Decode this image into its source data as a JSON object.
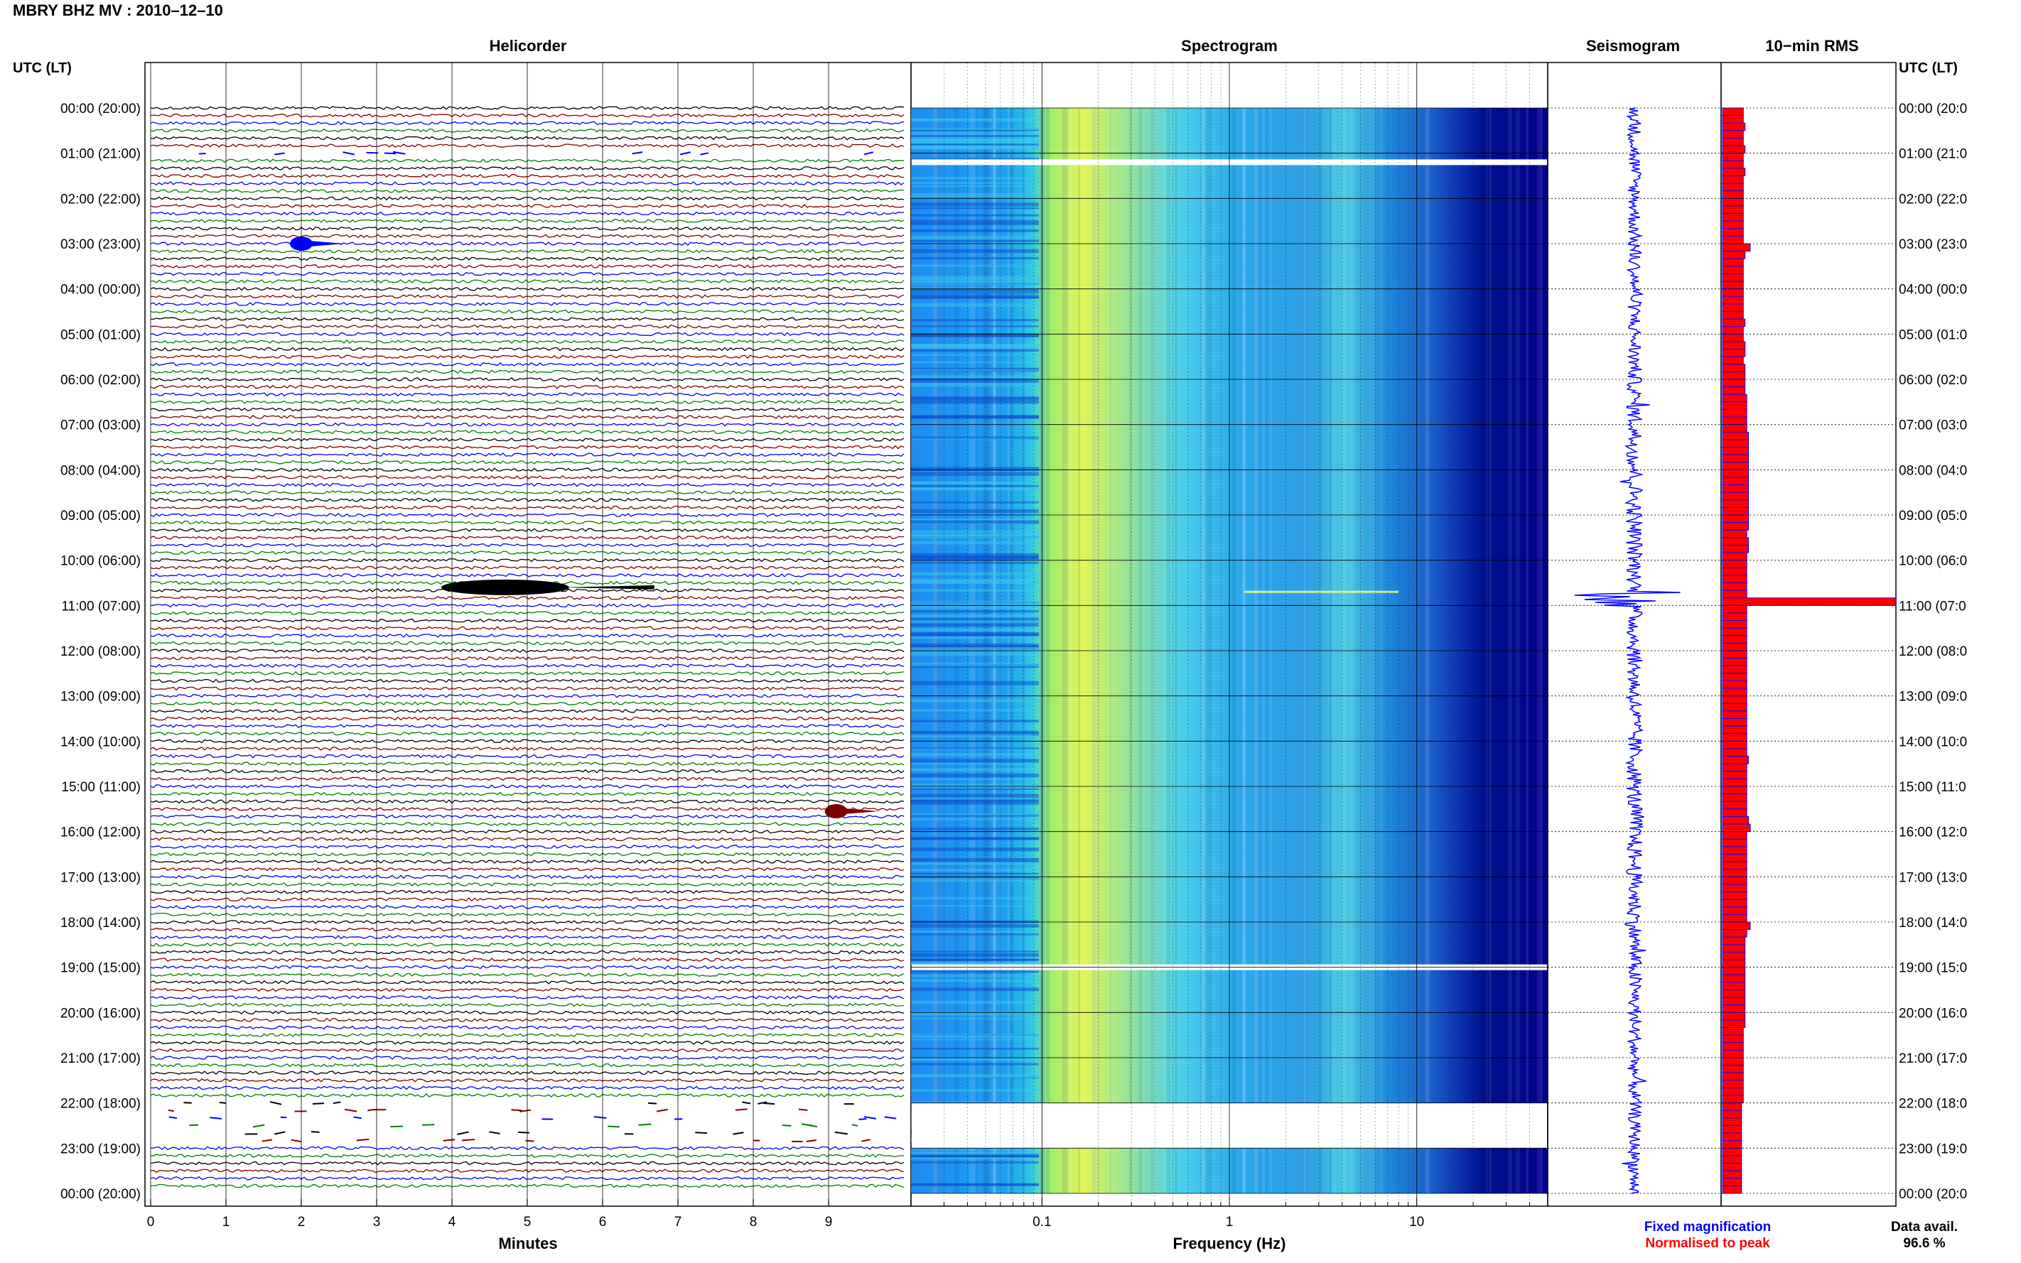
{
  "header": {
    "station_title": "MBRY BHZ MV : 2010–12–10"
  },
  "panels": {
    "helicorder_title": "Helicorder",
    "spectrogram_title": "Spectrogram",
    "seismogram_title": "Seismogram",
    "rms_title": "10−min RMS"
  },
  "axes": {
    "time_axis_label_left": "UTC (LT)",
    "time_axis_label_right": "UTC (LT)",
    "hour_labels_left": [
      "00:00 (20:00)",
      "01:00 (21:00)",
      "02:00 (22:00)",
      "03:00 (23:00)",
      "04:00 (00:00)",
      "05:00 (01:00)",
      "06:00 (02:00)",
      "07:00 (03:00)",
      "08:00 (04:00)",
      "09:00 (05:00)",
      "10:00 (06:00)",
      "11:00 (07:00)",
      "12:00 (08:00)",
      "13:00 (09:00)",
      "14:00 (10:00)",
      "15:00 (11:00)",
      "16:00 (12:00)",
      "17:00 (13:00)",
      "18:00 (14:00)",
      "19:00 (15:00)",
      "20:00 (16:00)",
      "21:00 (17:00)",
      "22:00 (18:00)",
      "23:00 (19:00)",
      "00:00 (20:00)"
    ],
    "hour_labels_right": [
      "00:00 (20:0",
      "01:00 (21:0",
      "02:00 (22:0",
      "03:00 (23:0",
      "04:00 (00:0",
      "05:00 (01:0",
      "06:00 (02:0",
      "07:00 (03:0",
      "08:00 (04:0",
      "09:00 (05:0",
      "10:00 (06:0",
      "11:00 (07:0",
      "12:00 (08:0",
      "13:00 (09:0",
      "14:00 (10:0",
      "15:00 (11:0",
      "16:00 (12:0",
      "17:00 (13:0",
      "18:00 (14:0",
      "19:00 (15:0",
      "20:00 (16:0",
      "21:00 (17:0",
      "22:00 (18:0",
      "23:00 (19:0",
      "00:00 (20:0"
    ],
    "minutes_ticks": [
      "0",
      "1",
      "2",
      "3",
      "4",
      "5",
      "6",
      "7",
      "8",
      "9"
    ],
    "minutes_label": "Minutes",
    "frequency_ticks": [
      "0.1",
      "1",
      "10"
    ],
    "frequency_label": "Frequency (Hz)"
  },
  "footer": {
    "fixed_magnification": "Fixed magnification",
    "normalised_to_peak": "Normalised to peak",
    "data_avail_label": "Data avail.",
    "data_avail_value": "96.6 %"
  },
  "colors": {
    "trace_cycle": [
      "#000000",
      "#800000",
      "#0000ff",
      "#008000"
    ],
    "seismogram": "#0000ff",
    "rms_fill": "#ff0000",
    "rms_edge": "#0000ff",
    "fixed_magnification_text": "#0000ff",
    "normalised_text": "#ff0000",
    "spectrogram_low": "#00008c",
    "spectrogram_high": "#ffff00"
  },
  "chart_data": {
    "type": "heatmap",
    "time_range_hours": [
      0,
      24
    ],
    "helicorder": {
      "minutes_range": [
        0,
        10
      ],
      "line_interval_minutes": 10,
      "data_gaps": [
        {
          "start_h": 1.0,
          "end_h": 1.1
        },
        {
          "start_h": 22.0,
          "end_h": 23.0
        }
      ],
      "events": [
        {
          "time_h": 3.0,
          "minute": 2.0,
          "amplitude": "moderate"
        },
        {
          "time_h": 10.6,
          "minute": 4.8,
          "amplitude": "large"
        },
        {
          "time_h": 15.55,
          "minute": 9.1,
          "amplitude": "moderate"
        }
      ]
    },
    "spectrogram": {
      "x_scale": "log",
      "frequency_range_hz": [
        0.02,
        50
      ],
      "white_gaps_h": [
        1.2,
        19.0,
        [
          22.0,
          23.0
        ]
      ]
    },
    "rms_10min": {
      "normalised_to_peak": true,
      "peak_time_h": 10.75,
      "values": [
        0.12,
        0.12,
        0.13,
        0.12,
        0.12,
        0.13,
        0.12,
        0.12,
        0.13,
        0.12,
        0.12,
        0.12,
        0.12,
        0.12,
        0.12,
        0.12,
        0.12,
        0.12,
        0.16,
        0.13,
        0.12,
        0.12,
        0.12,
        0.12,
        0.12,
        0.12,
        0.12,
        0.12,
        0.13,
        0.12,
        0.12,
        0.13,
        0.13,
        0.12,
        0.13,
        0.13,
        0.13,
        0.13,
        0.14,
        0.14,
        0.14,
        0.14,
        0.14,
        0.15,
        0.15,
        0.15,
        0.15,
        0.15,
        0.15,
        0.15,
        0.15,
        0.15,
        0.15,
        0.15,
        0.15,
        0.15,
        0.14,
        0.15,
        0.15,
        0.14,
        0.14,
        0.14,
        0.14,
        0.14,
        0.14,
        1.0,
        0.14,
        0.14,
        0.14,
        0.14,
        0.14,
        0.14,
        0.14,
        0.14,
        0.14,
        0.14,
        0.14,
        0.14,
        0.14,
        0.14,
        0.14,
        0.14,
        0.14,
        0.14,
        0.14,
        0.14,
        0.15,
        0.14,
        0.14,
        0.14,
        0.14,
        0.14,
        0.14,
        0.14,
        0.15,
        0.16,
        0.14,
        0.14,
        0.14,
        0.14,
        0.14,
        0.14,
        0.14,
        0.14,
        0.14,
        0.14,
        0.14,
        0.14,
        0.16,
        0.14,
        0.13,
        0.13,
        0.13,
        0.13,
        0.13,
        0.13,
        0.13,
        0.13,
        0.13,
        0.13,
        0.13,
        0.13,
        0.12,
        0.12,
        0.12,
        0.12,
        0.12,
        0.12,
        0.12,
        0.12,
        0.12,
        0.12,
        0.11,
        0.11,
        0.11,
        0.11,
        0.11,
        0.11,
        0.11,
        0.11,
        0.11,
        0.11,
        0.11,
        0.11
      ]
    }
  }
}
